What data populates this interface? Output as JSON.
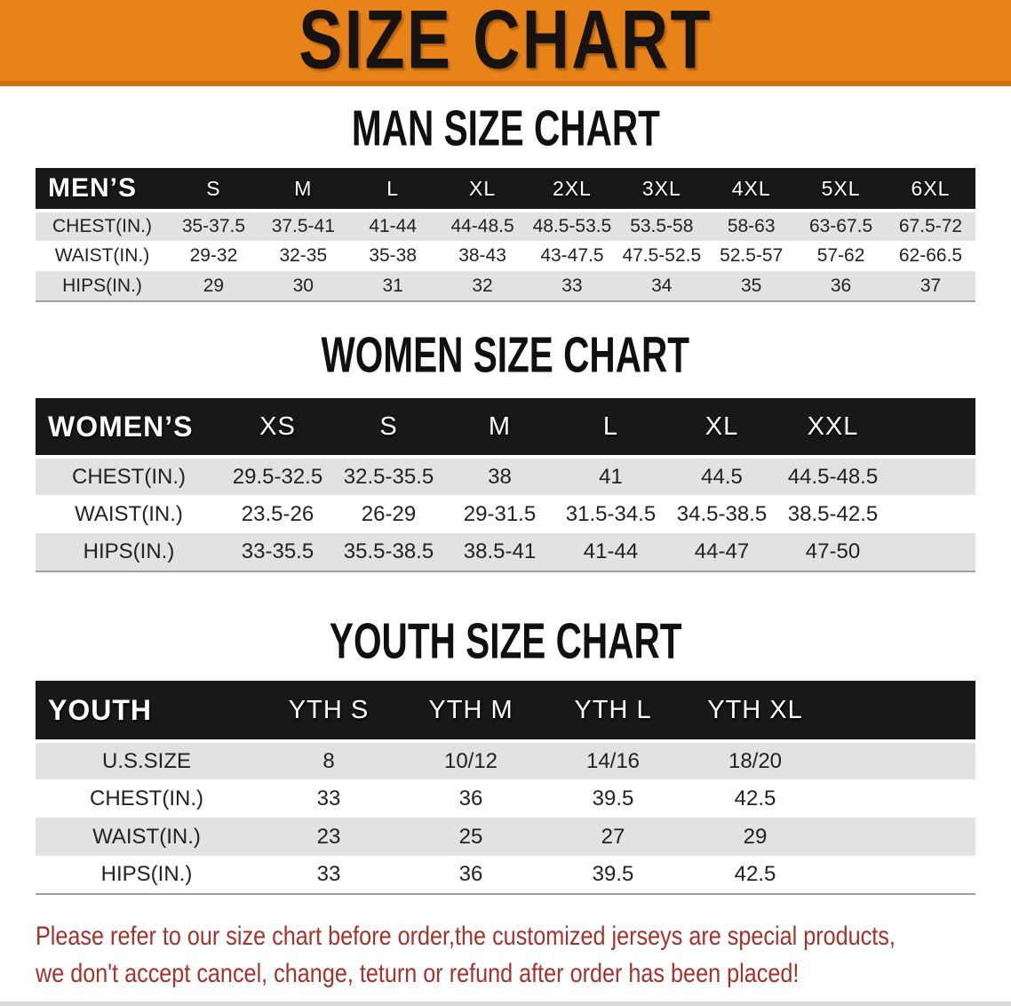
{
  "banner": {
    "title": "SIZE CHART"
  },
  "sections": [
    {
      "heading": "MAN SIZE CHART",
      "label": "MEN’S",
      "columns": [
        "S",
        "M",
        "L",
        "XL",
        "2XL",
        "3XL",
        "4XL",
        "5XL",
        "6XL"
      ],
      "rows": [
        {
          "label": "CHEST(IN.)",
          "values": [
            "35-37.5",
            "37.5-41",
            "41-44",
            "44-48.5",
            "48.5-53.5",
            "53.5-58",
            "58-63",
            "63-67.5",
            "67.5-72"
          ]
        },
        {
          "label": "WAIST(IN.)",
          "values": [
            "29-32",
            "32-35",
            "35-38",
            "38-43",
            "43-47.5",
            "47.5-52.5",
            "52.5-57",
            "57-62",
            "62-66.5"
          ]
        },
        {
          "label": "HIPS(IN.)",
          "values": [
            "29",
            "30",
            "31",
            "32",
            "33",
            "34",
            "35",
            "36",
            "37"
          ]
        }
      ]
    },
    {
      "heading": "WOMEN SIZE CHART",
      "label": "WOMEN’S",
      "columns": [
        "XS",
        "S",
        "M",
        "L",
        "XL",
        "XXL"
      ],
      "rows": [
        {
          "label": "CHEST(IN.)",
          "values": [
            "29.5-32.5",
            "32.5-35.5",
            "38",
            "41",
            "44.5",
            "44.5-48.5"
          ]
        },
        {
          "label": "WAIST(IN.)",
          "values": [
            "23.5-26",
            "26-29",
            "29-31.5",
            "31.5-34.5",
            "34.5-38.5",
            "38.5-42.5"
          ]
        },
        {
          "label": "HIPS(IN.)",
          "values": [
            "33-35.5",
            "35.5-38.5",
            "38.5-41",
            "41-44",
            "44-47",
            "47-50"
          ]
        }
      ]
    },
    {
      "heading": "YOUTH SIZE CHART",
      "label": "YOUTH",
      "columns": [
        "YTH S",
        "YTH M",
        "YTH L",
        "YTH XL"
      ],
      "rows": [
        {
          "label": "U.S.SIZE",
          "values": [
            "8",
            "10/12",
            "14/16",
            "18/20"
          ]
        },
        {
          "label": "CHEST(IN.)",
          "values": [
            "33",
            "36",
            "39.5",
            "42.5"
          ]
        },
        {
          "label": "WAIST(IN.)",
          "values": [
            "23",
            "25",
            "27",
            "29"
          ]
        },
        {
          "label": "HIPS(IN.)",
          "values": [
            "33",
            "36",
            "39.5",
            "42.5"
          ]
        }
      ]
    }
  ],
  "footer": {
    "line1": "Please refer to our size chart before order,the customized jerseys are special products,",
    "line2": "we don't accept cancel, change, teturn or refund after order has been placed!"
  },
  "colors": {
    "banner_bg": "#e8831a",
    "banner_edge": "#d06f10",
    "table_header_bg": "#181818",
    "row_alt_bg": "#e2e2e2",
    "footer_text": "#a5322b"
  }
}
